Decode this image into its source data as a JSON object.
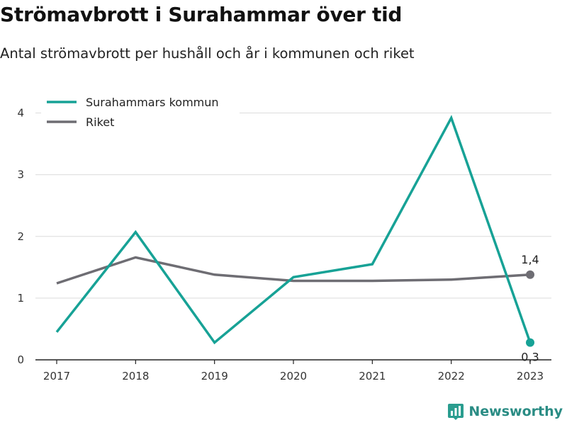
{
  "header": {
    "title": "Strömavbrott i Surahammar över tid",
    "subtitle": "Antal strömavbrott per hushåll och år i kommunen och riket"
  },
  "brand": {
    "name": "Newsworthy",
    "icon": "bar-chart-logo-icon",
    "color": "#2a9d8f"
  },
  "chart_data": {
    "type": "line",
    "x": [
      2017,
      2018,
      2019,
      2020,
      2021,
      2022,
      2023
    ],
    "series": [
      {
        "name": "Surahammars kommun",
        "color": "#17a296",
        "values": [
          0.45,
          2.07,
          0.28,
          1.34,
          1.55,
          3.92,
          0.28
        ]
      },
      {
        "name": "Riket",
        "color": "#6e6d73",
        "values": [
          1.24,
          1.66,
          1.38,
          1.28,
          1.28,
          1.3,
          1.38
        ]
      }
    ],
    "ylim": [
      0,
      4
    ],
    "yticks": [
      "0",
      "1",
      "2",
      "3",
      "4"
    ],
    "grid": true,
    "legend": "top-left",
    "end_labels": [
      "0,3",
      "1,4"
    ]
  }
}
